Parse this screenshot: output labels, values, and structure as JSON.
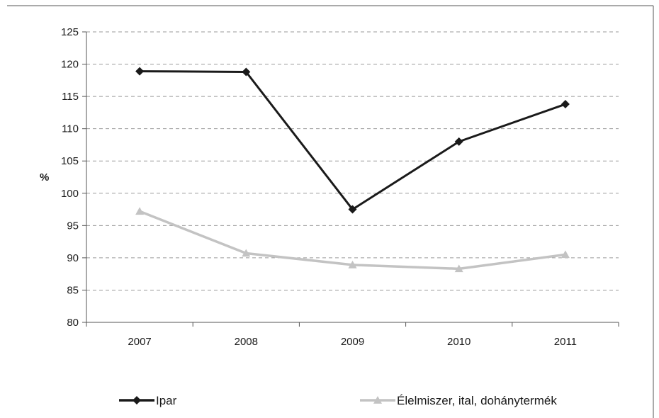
{
  "chart_data": {
    "type": "line",
    "title": "",
    "xlabel": "",
    "ylabel": "%",
    "categories": [
      "2007",
      "2008",
      "2009",
      "2010",
      "2011"
    ],
    "ylim": [
      80,
      125
    ],
    "y_ticks": [
      "80",
      "85",
      "90",
      "95",
      "100",
      "105",
      "110",
      "115",
      "120",
      "125"
    ],
    "grid": "horizontal dashed",
    "legend_position": "bottom",
    "series": [
      {
        "name": "Ipar",
        "values": [
          118.9,
          118.8,
          97.5,
          108.0,
          113.8
        ],
        "color": "#1a1a1a",
        "marker": "diamond"
      },
      {
        "name": "Élelmiszer, ital, dohánytermék",
        "values": [
          97.2,
          90.7,
          88.9,
          88.3,
          90.5
        ],
        "color": "#c3c3c3",
        "marker": "triangle"
      }
    ]
  }
}
